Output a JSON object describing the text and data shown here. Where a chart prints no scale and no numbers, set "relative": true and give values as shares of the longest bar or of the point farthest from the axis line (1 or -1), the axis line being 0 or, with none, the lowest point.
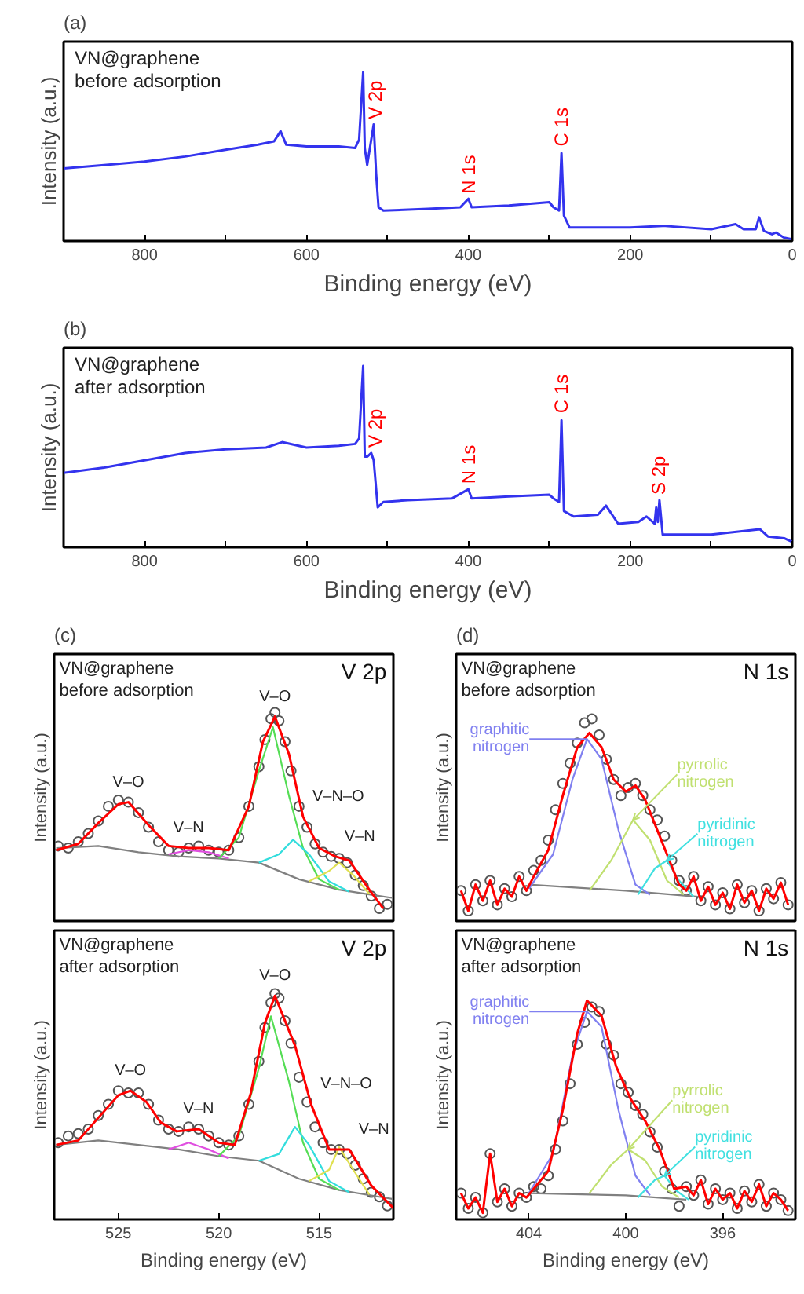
{
  "chart_data": [
    {
      "type": "line",
      "title": "(a)",
      "xlabel": "Binding energy (eV)",
      "ylabel": "Intensity (a.u.)",
      "relative": true,
      "tick_labels": "x",
      "xlim": [
        900,
        0
      ],
      "xticks": [
        800,
        {
          "value": 700,
          "label": null
        },
        600,
        {
          "value": 500,
          "label": null
        },
        400,
        {
          "value": 300,
          "label": null
        },
        200,
        {
          "value": 100,
          "label": null
        },
        0
      ],
      "series": [
        {
          "color": "#3333ee",
          "x": [
            900,
            850,
            800,
            750,
            700,
            660,
            640,
            632,
            625,
            600,
            560,
            540,
            535,
            530,
            528,
            525,
            520,
            517,
            514,
            511,
            505,
            450,
            410,
            400,
            396,
            350,
            300,
            295,
            288,
            285,
            282,
            275,
            200,
            160,
            100,
            70,
            60,
            45,
            41,
            35,
            25,
            20,
            10,
            0
          ],
          "values": [
            0.43,
            0.45,
            0.47,
            0.5,
            0.54,
            0.57,
            0.59,
            0.65,
            0.57,
            0.56,
            0.56,
            0.55,
            0.6,
            1.0,
            0.55,
            0.45,
            0.6,
            0.69,
            0.4,
            0.2,
            0.18,
            0.19,
            0.2,
            0.25,
            0.2,
            0.21,
            0.23,
            0.2,
            0.18,
            0.52,
            0.15,
            0.08,
            0.08,
            0.09,
            0.07,
            0.1,
            0.07,
            0.07,
            0.14,
            0.06,
            0.04,
            0.05,
            0.02,
            0.01
          ]
        }
      ],
      "annotations": [
        "VN@graphene",
        "before adsorption",
        {
          "text": "V 2p",
          "x": 515,
          "y": 0.72
        },
        {
          "text": "N 1s",
          "x": 400,
          "y": 0.28
        },
        {
          "text": "C 1s",
          "x": 285,
          "y": 0.56
        }
      ]
    },
    {
      "type": "line",
      "title": "(b)",
      "xlabel": "Binding energy (eV)",
      "ylabel": "Intensity (a.u.)",
      "relative": true,
      "tick_labels": "x",
      "xlim": [
        900,
        0
      ],
      "xticks": [
        800,
        {
          "value": 700,
          "label": null
        },
        600,
        {
          "value": 500,
          "label": null
        },
        400,
        {
          "value": 300,
          "label": null
        },
        200,
        {
          "value": 100,
          "label": null
        },
        0
      ],
      "series": [
        {
          "color": "#3333ee",
          "x": [
            900,
            850,
            800,
            750,
            700,
            650,
            630,
            600,
            560,
            540,
            535,
            530,
            528,
            525,
            520,
            517,
            512,
            505,
            475,
            420,
            400,
            396,
            350,
            300,
            295,
            288,
            285,
            282,
            270,
            240,
            230,
            215,
            190,
            180,
            170,
            168,
            166,
            164,
            160,
            100,
            60,
            40,
            30,
            10,
            0
          ],
          "values": [
            0.41,
            0.44,
            0.48,
            0.52,
            0.54,
            0.55,
            0.58,
            0.55,
            0.56,
            0.57,
            0.6,
            1.0,
            0.5,
            0.5,
            0.52,
            0.48,
            0.22,
            0.25,
            0.26,
            0.27,
            0.32,
            0.27,
            0.28,
            0.29,
            0.27,
            0.25,
            0.7,
            0.2,
            0.17,
            0.18,
            0.23,
            0.13,
            0.14,
            0.17,
            0.13,
            0.22,
            0.14,
            0.26,
            0.07,
            0.07,
            0.09,
            0.1,
            0.06,
            0.05,
            0.03
          ]
        }
      ],
      "annotations": [
        "VN@graphene",
        "after adsorption",
        {
          "text": "V 2p",
          "x": 515,
          "y": 0.55
        },
        {
          "text": "N 1s",
          "x": 400,
          "y": 0.35
        },
        {
          "text": "C 1s",
          "x": 285,
          "y": 0.74
        },
        {
          "text": "S 2p",
          "x": 165,
          "y": 0.29
        }
      ]
    },
    {
      "type": "line",
      "title": "(c)",
      "subtitle": "V 2p",
      "ylabel": "Intensity (a.u.)",
      "relative": true,
      "tick_labels": false,
      "xlim": [
        528.2,
        511.3
      ],
      "xticks": [
        525,
        520,
        515
      ],
      "series": [
        {
          "type": "scatter",
          "marker": "circle",
          "color": "#555555",
          "x": [
            528,
            527.5,
            527,
            526.5,
            526,
            525.5,
            525,
            524.5,
            524,
            523.5,
            523,
            522.5,
            522,
            521.5,
            521,
            520.5,
            520,
            519.5,
            519,
            518.5,
            518,
            517.7,
            517.4,
            517.2,
            517,
            516.7,
            516.4,
            516,
            515.6,
            515.2,
            514.8,
            514.4,
            514,
            513.6,
            513.2,
            512.8,
            512.4,
            512,
            511.6
          ],
          "values": [
            0.36,
            0.35,
            0.38,
            0.42,
            0.48,
            0.55,
            0.58,
            0.57,
            0.52,
            0.45,
            0.38,
            0.34,
            0.33,
            0.35,
            0.36,
            0.34,
            0.33,
            0.34,
            0.4,
            0.55,
            0.74,
            0.87,
            0.97,
            1.0,
            0.96,
            0.86,
            0.72,
            0.55,
            0.45,
            0.37,
            0.33,
            0.31,
            0.3,
            0.28,
            0.22,
            0.17,
            0.12,
            0.06,
            0.08
          ]
        },
        {
          "color": "#808080",
          "x": [
            528.1,
            526,
            524,
            522,
            520,
            518,
            516,
            514,
            512,
            511.3
          ],
          "values": [
            0.35,
            0.36,
            0.33,
            0.31,
            0.3,
            0.28,
            0.2,
            0.15,
            0.12,
            0.11
          ]
        },
        {
          "color": "#e050e0",
          "x": [
            522.5,
            521.5,
            520.5,
            519.5
          ],
          "values": [
            0.32,
            0.34,
            0.33,
            0.3
          ]
        },
        {
          "color": "#55dd55",
          "x": [
            520,
            519,
            518,
            517.3,
            516.5,
            515.8,
            515,
            514
          ],
          "values": [
            0.3,
            0.4,
            0.72,
            0.93,
            0.6,
            0.35,
            0.2,
            0.15
          ]
        },
        {
          "color": "#33dddd",
          "x": [
            518,
            517,
            516.3,
            515.5,
            514.5,
            513.5
          ],
          "values": [
            0.28,
            0.32,
            0.39,
            0.32,
            0.19,
            0.14
          ]
        },
        {
          "color": "#e0e050",
          "x": [
            515.5,
            514.5,
            514,
            513.3,
            512.5
          ],
          "values": [
            0.19,
            0.24,
            0.28,
            0.22,
            0.13
          ]
        },
        {
          "color": "#ff0000",
          "x": [
            528.1,
            527,
            526,
            525,
            524.5,
            523.5,
            522.5,
            521.5,
            520.5,
            519.5,
            518.5,
            517.8,
            517.2,
            516.5,
            515.8,
            515,
            514.2,
            513.5,
            512.5,
            511.8
          ],
          "values": [
            0.34,
            0.37,
            0.47,
            0.56,
            0.57,
            0.46,
            0.36,
            0.35,
            0.35,
            0.34,
            0.55,
            0.86,
            0.98,
            0.8,
            0.5,
            0.35,
            0.31,
            0.29,
            0.15,
            0.06
          ]
        }
      ],
      "annotations": [
        "VN@graphene",
        "before adsorption",
        {
          "text": "V–O",
          "x": 524.5,
          "y": 0.57
        },
        {
          "text": "V–N",
          "x": 521.5,
          "y": 0.35
        },
        {
          "text": "V–O",
          "x": 517.2,
          "y": 0.98
        },
        {
          "text": "V–N–O",
          "x": 515.8,
          "y": 0.5
        },
        {
          "text": "V–N",
          "x": 514.2,
          "y": 0.31
        }
      ]
    },
    {
      "type": "line",
      "subtitle": "V 2p",
      "xlabel": "Binding energy (eV)",
      "ylabel": "Intensity (a.u.)",
      "relative": true,
      "tick_labels": "x",
      "xlim": [
        528.2,
        511.3
      ],
      "xticks": [
        525,
        520,
        515
      ],
      "series": [
        {
          "type": "scatter",
          "marker": "circle",
          "color": "#555555",
          "x": [
            528,
            527.5,
            527,
            526.5,
            526,
            525.5,
            525,
            524.5,
            524,
            523.5,
            523,
            522.5,
            522,
            521.5,
            521,
            520.5,
            520,
            519.5,
            519,
            518.5,
            518,
            517.7,
            517.4,
            517.2,
            517,
            516.7,
            516.4,
            516,
            515.6,
            515.2,
            514.8,
            514.4,
            514,
            513.6,
            513.2,
            512.8,
            512.4,
            512,
            511.6
          ],
          "values": [
            0.34,
            0.37,
            0.38,
            0.4,
            0.46,
            0.51,
            0.57,
            0.56,
            0.56,
            0.51,
            0.44,
            0.4,
            0.39,
            0.41,
            0.4,
            0.37,
            0.34,
            0.33,
            0.37,
            0.51,
            0.7,
            0.85,
            0.96,
            1.0,
            0.98,
            0.88,
            0.78,
            0.63,
            0.52,
            0.41,
            0.34,
            0.31,
            0.31,
            0.29,
            0.24,
            0.18,
            0.12,
            0.1,
            0.06
          ]
        },
        {
          "color": "#808080",
          "x": [
            528.1,
            526,
            524,
            522,
            520,
            518,
            516,
            514,
            512,
            511.3
          ],
          "values": [
            0.33,
            0.35,
            0.33,
            0.31,
            0.28,
            0.26,
            0.18,
            0.13,
            0.1,
            0.09
          ]
        },
        {
          "color": "#e050e0",
          "x": [
            522.5,
            521.5,
            520.5,
            519.5
          ],
          "values": [
            0.31,
            0.34,
            0.31,
            0.27
          ]
        },
        {
          "color": "#55dd55",
          "x": [
            520,
            519,
            518,
            517.4,
            516.5,
            515.8,
            515,
            514
          ],
          "values": [
            0.28,
            0.37,
            0.67,
            0.9,
            0.61,
            0.34,
            0.18,
            0.13
          ]
        },
        {
          "color": "#33dddd",
          "x": [
            518,
            517,
            516.2,
            515.5,
            514.5,
            513.5
          ],
          "values": [
            0.26,
            0.29,
            0.41,
            0.33,
            0.17,
            0.12
          ]
        },
        {
          "color": "#e0e050",
          "x": [
            515.5,
            514.5,
            514,
            513.3,
            512.5
          ],
          "values": [
            0.17,
            0.22,
            0.32,
            0.22,
            0.11
          ]
        },
        {
          "color": "#ff0000",
          "x": [
            528.1,
            527,
            526,
            525,
            524.4,
            523.6,
            522.9,
            522.1,
            521,
            520,
            519.2,
            518.4,
            517.7,
            517.2,
            516.2,
            515.4,
            514.5,
            513.5,
            512.4,
            511.3
          ],
          "values": [
            0.33,
            0.35,
            0.45,
            0.55,
            0.57,
            0.52,
            0.43,
            0.39,
            0.4,
            0.34,
            0.33,
            0.56,
            0.87,
            0.99,
            0.77,
            0.51,
            0.31,
            0.31,
            0.15,
            0.05
          ]
        }
      ],
      "annotations": [
        "VN@graphene",
        "after adsorption",
        {
          "text": "V–O",
          "x": 524.4,
          "y": 0.57
        },
        {
          "text": "V–N",
          "x": 521,
          "y": 0.4
        },
        {
          "text": "V–O",
          "x": 517.2,
          "y": 0.99
        },
        {
          "text": "V–N–O",
          "x": 515.4,
          "y": 0.51
        },
        {
          "text": "V–N",
          "x": 513.5,
          "y": 0.31
        }
      ]
    },
    {
      "type": "line",
      "title": "(d)",
      "subtitle": "N 1s",
      "ylabel": "Intensity (a.u.)",
      "relative": true,
      "tick_labels": false,
      "xlim": [
        407,
        393
      ],
      "xticks": [
        404,
        400,
        396
      ],
      "series": [
        {
          "type": "scatter",
          "marker": "circle",
          "color": "#555555",
          "x": [
            406.8,
            406.5,
            406.2,
            405.9,
            405.6,
            405.3,
            405,
            404.7,
            404.4,
            404.1,
            403.8,
            403.5,
            403.2,
            402.9,
            402.6,
            402.3,
            402,
            401.7,
            401.4,
            401.1,
            400.8,
            400.5,
            400.2,
            399.9,
            399.6,
            399.3,
            399,
            398.7,
            398.4,
            398.1,
            397.8,
            397.5,
            397.2,
            396.9,
            396.6,
            396.3,
            396,
            395.7,
            395.4,
            395.1,
            394.8,
            394.5,
            394.2,
            393.9,
            393.6,
            393.3
          ],
          "values": [
            0.15,
            0.05,
            0.18,
            0.1,
            0.2,
            0.08,
            0.16,
            0.12,
            0.22,
            0.15,
            0.25,
            0.3,
            0.4,
            0.55,
            0.68,
            0.78,
            0.88,
            0.98,
            1.0,
            0.92,
            0.8,
            0.7,
            0.62,
            0.66,
            0.68,
            0.62,
            0.55,
            0.5,
            0.42,
            0.3,
            0.2,
            0.15,
            0.22,
            0.1,
            0.17,
            0.08,
            0.14,
            0.06,
            0.18,
            0.09,
            0.15,
            0.05,
            0.16,
            0.11,
            0.19,
            0.08
          ]
        },
        {
          "color": "#808080",
          "x": [
            404,
            400,
            397
          ],
          "values": [
            0.18,
            0.15,
            0.12
          ]
        },
        {
          "name": "graphitic nitrogen",
          "color": "#8080f0",
          "x": [
            404,
            403,
            402.2,
            401.6,
            401,
            400.3,
            399.6,
            399
          ],
          "values": [
            0.16,
            0.33,
            0.7,
            0.9,
            0.8,
            0.45,
            0.18,
            0.13
          ]
        },
        {
          "name": "pyrrolic nitrogen",
          "color": "#c0e070",
          "x": [
            401.5,
            400.6,
            399.7,
            399,
            398.3,
            397.6
          ],
          "values": [
            0.15,
            0.3,
            0.5,
            0.4,
            0.2,
            0.13
          ]
        },
        {
          "name": "pyridinic nitrogen",
          "color": "#40e0e0",
          "x": [
            399.5,
            398.8,
            398.3,
            397.8,
            397.2
          ],
          "values": [
            0.13,
            0.26,
            0.3,
            0.2,
            0.12
          ]
        },
        {
          "color": "#ff0000",
          "x": [
            406.8,
            406.5,
            406.2,
            405.9,
            405.6,
            405.3,
            405,
            404.7,
            404.4,
            404.1,
            403.8,
            403.2,
            402.6,
            402,
            401.5,
            401,
            400.5,
            400,
            399.6,
            399.2,
            398.7,
            398.3,
            397.8,
            397.5,
            397.2,
            396.9,
            396.6,
            396.3,
            396,
            395.7,
            395.4,
            395.1,
            394.8,
            394.5,
            394.2,
            393.9,
            393.6,
            393.3
          ],
          "values": [
            0.15,
            0.05,
            0.18,
            0.1,
            0.2,
            0.08,
            0.16,
            0.12,
            0.22,
            0.15,
            0.22,
            0.35,
            0.62,
            0.86,
            0.93,
            0.86,
            0.7,
            0.64,
            0.67,
            0.6,
            0.45,
            0.33,
            0.18,
            0.15,
            0.22,
            0.1,
            0.17,
            0.08,
            0.14,
            0.06,
            0.18,
            0.09,
            0.15,
            0.05,
            0.16,
            0.11,
            0.19,
            0.08
          ]
        }
      ],
      "annotations": [
        "VN@graphene",
        "before adsorption"
      ]
    },
    {
      "type": "line",
      "subtitle": "N 1s",
      "xlabel": "Binding energy (eV)",
      "ylabel": "Intensity (a.u.)",
      "relative": true,
      "tick_labels": "x",
      "xlim": [
        407,
        393
      ],
      "xticks": [
        404,
        400,
        396
      ],
      "series": [
        {
          "type": "scatter",
          "marker": "circle",
          "color": "#555555",
          "x": [
            406.8,
            406.5,
            406.2,
            405.9,
            405.6,
            405.3,
            405,
            404.7,
            404.4,
            404.1,
            403.8,
            403.5,
            403.2,
            402.9,
            402.6,
            402.3,
            402,
            401.7,
            401.4,
            401.1,
            400.8,
            400.5,
            400.2,
            399.9,
            399.6,
            399.3,
            399,
            398.7,
            398.4,
            398.1,
            397.8,
            397.5,
            397.2,
            396.9,
            396.6,
            396.3,
            396,
            395.7,
            395.4,
            395.1,
            394.8,
            394.5,
            394.2,
            393.9,
            393.6,
            393.3
          ],
          "values": [
            0.12,
            0.05,
            0.1,
            0.03,
            0.3,
            0.08,
            0.14,
            0.06,
            0.12,
            0.1,
            0.15,
            0.14,
            0.2,
            0.32,
            0.45,
            0.62,
            0.8,
            0.9,
            0.97,
            0.95,
            0.8,
            0.75,
            0.62,
            0.58,
            0.52,
            0.48,
            0.4,
            0.33,
            0.22,
            0.14,
            0.06,
            0.15,
            0.11,
            0.18,
            0.07,
            0.14,
            0.09,
            0.12,
            0.05,
            0.13,
            0.08,
            0.16,
            0.06,
            0.12,
            0.09,
            0.04
          ]
        },
        {
          "color": "#808080",
          "x": [
            404,
            400,
            397.5
          ],
          "values": [
            0.12,
            0.11,
            0.09
          ]
        },
        {
          "name": "graphitic nitrogen",
          "color": "#8080f0",
          "x": [
            404,
            403,
            402.2,
            401.6,
            401,
            400.3,
            399.6,
            399
          ],
          "values": [
            0.12,
            0.3,
            0.75,
            0.95,
            0.88,
            0.5,
            0.2,
            0.11
          ]
        },
        {
          "name": "pyrrolic nitrogen",
          "color": "#c0e070",
          "x": [
            401.5,
            400.6,
            399.9,
            399.2,
            398.5,
            397.8
          ],
          "values": [
            0.12,
            0.25,
            0.32,
            0.27,
            0.15,
            0.1
          ]
        },
        {
          "name": "pyridinic nitrogen",
          "color": "#40e0e0",
          "x": [
            399.5,
            398.8,
            398.4,
            397.9,
            397.4
          ],
          "values": [
            0.1,
            0.18,
            0.2,
            0.13,
            0.09
          ]
        },
        {
          "color": "#ff0000",
          "x": [
            406.8,
            406.5,
            406.2,
            405.9,
            405.6,
            405.3,
            405,
            404.7,
            404.4,
            404.1,
            403.8,
            403.2,
            402.6,
            402,
            401.6,
            401,
            400.4,
            399.8,
            399.2,
            398.6,
            398,
            397.5,
            397.2,
            396.9,
            396.6,
            396.3,
            396,
            395.7,
            395.4,
            395.1,
            394.8,
            394.5,
            394.2,
            393.9,
            393.6,
            393.3
          ],
          "values": [
            0.12,
            0.05,
            0.1,
            0.03,
            0.3,
            0.08,
            0.14,
            0.06,
            0.12,
            0.1,
            0.14,
            0.22,
            0.5,
            0.85,
            1.0,
            0.93,
            0.7,
            0.55,
            0.45,
            0.32,
            0.14,
            0.15,
            0.11,
            0.18,
            0.07,
            0.14,
            0.09,
            0.12,
            0.05,
            0.13,
            0.08,
            0.16,
            0.06,
            0.12,
            0.09,
            0.04
          ]
        }
      ],
      "annotations": [
        "VN@graphene",
        "after adsorption"
      ]
    }
  ]
}
